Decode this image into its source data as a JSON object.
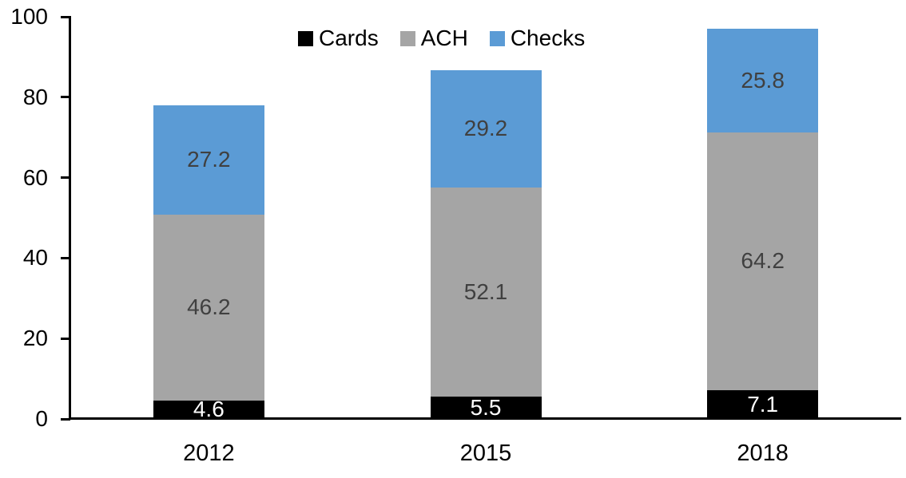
{
  "chart_data": {
    "type": "bar",
    "stacked": true,
    "title": "",
    "xlabel": "",
    "ylabel": "",
    "categories": [
      "2012",
      "2015",
      "2018"
    ],
    "series": [
      {
        "name": "Cards",
        "color": "#000000",
        "label_color": "#ffffff",
        "values": [
          4.6,
          5.5,
          7.1
        ]
      },
      {
        "name": "ACH",
        "color": "#a5a5a5",
        "label_color": "#404040",
        "values": [
          46.2,
          52.1,
          64.2
        ]
      },
      {
        "name": "Checks",
        "color": "#5b9bd5",
        "label_color": "#404040",
        "values": [
          27.2,
          29.2,
          25.8
        ]
      }
    ],
    "bar_totals": [
      78.0,
      86.8,
      97.1
    ],
    "ylim": [
      0,
      100
    ],
    "yticks": [
      0,
      20,
      40,
      60,
      80,
      100
    ],
    "grid": false,
    "legend_position": "top",
    "axis_color": "#000000"
  }
}
